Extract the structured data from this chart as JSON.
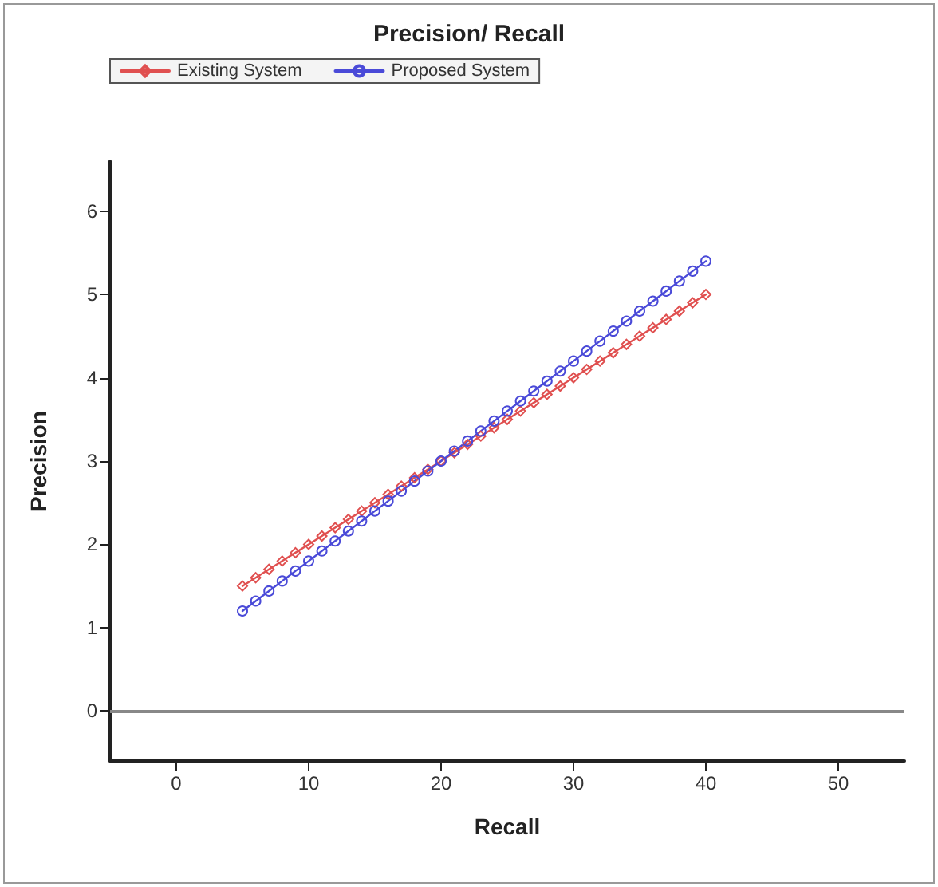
{
  "chart_data": {
    "type": "line",
    "title": "Precision/ Recall",
    "xlabel": "Recall",
    "ylabel": "Precision",
    "x": [
      5,
      6,
      7,
      8,
      9,
      10,
      11,
      12,
      13,
      14,
      15,
      16,
      17,
      18,
      19,
      20,
      21,
      22,
      23,
      24,
      25,
      26,
      27,
      28,
      29,
      30,
      31,
      32,
      33,
      34,
      35,
      36,
      37,
      38,
      39,
      40
    ],
    "series": [
      {
        "name": "Existing System",
        "color": "#e05050",
        "marker": "diamond",
        "values": [
          1.5,
          1.6,
          1.7,
          1.8,
          1.9,
          2.0,
          2.1,
          2.2,
          2.3,
          2.4,
          2.5,
          2.6,
          2.7,
          2.8,
          2.9,
          3.0,
          3.1,
          3.2,
          3.3,
          3.4,
          3.5,
          3.6,
          3.7,
          3.8,
          3.9,
          4.0,
          4.1,
          4.2,
          4.3,
          4.4,
          4.5,
          4.6,
          4.7,
          4.8,
          4.9,
          5.0
        ]
      },
      {
        "name": "Proposed System",
        "color": "#4a4ad8",
        "marker": "circle",
        "values": [
          1.2,
          1.32,
          1.44,
          1.56,
          1.68,
          1.8,
          1.92,
          2.04,
          2.16,
          2.28,
          2.4,
          2.52,
          2.64,
          2.76,
          2.88,
          3.0,
          3.12,
          3.24,
          3.36,
          3.48,
          3.6,
          3.72,
          3.84,
          3.96,
          4.08,
          4.2,
          4.32,
          4.44,
          4.56,
          4.68,
          4.8,
          4.92,
          5.04,
          5.16,
          5.28,
          5.4
        ]
      }
    ],
    "xlim": [
      -5,
      55
    ],
    "xticks": [
      0,
      10,
      20,
      30,
      40,
      50
    ],
    "ylim": [
      -0.6,
      6.6
    ],
    "yticks": [
      0,
      1,
      2,
      3,
      4,
      5,
      6
    ],
    "ref_lines": [
      {
        "axis": "y",
        "value": 0,
        "color": "#888888"
      }
    ],
    "grid": false,
    "legend": "top left",
    "line_style": "solid"
  }
}
